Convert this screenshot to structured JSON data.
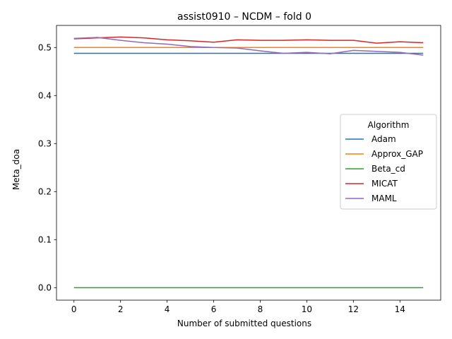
{
  "chart_data": {
    "type": "line",
    "title": "assist0910 – NCDM – fold 0",
    "xlabel": "Number of submitted questions",
    "ylabel": "Meta_doa",
    "xlim": [
      -0.75,
      15.75
    ],
    "ylim": [
      -0.026,
      0.546
    ],
    "xticks": [
      0,
      2,
      4,
      6,
      8,
      10,
      12,
      14
    ],
    "yticks": [
      0.0,
      0.1,
      0.2,
      0.3,
      0.4,
      0.5
    ],
    "grid": false,
    "legend": {
      "title": "Algorithm",
      "placement": "center-right"
    },
    "x": [
      0,
      1,
      2,
      3,
      4,
      5,
      6,
      7,
      8,
      9,
      10,
      11,
      12,
      13,
      14,
      15
    ],
    "series": [
      {
        "name": "Adam",
        "color": "#1f77b4",
        "values": [
          0.488,
          0.488,
          0.488,
          0.488,
          0.488,
          0.488,
          0.488,
          0.488,
          0.488,
          0.488,
          0.488,
          0.488,
          0.488,
          0.488,
          0.488,
          0.488
        ]
      },
      {
        "name": "Approx_GAP",
        "color": "#ff7f0e",
        "values": [
          0.5,
          0.5,
          0.5,
          0.5,
          0.5,
          0.5,
          0.5,
          0.5,
          0.5,
          0.5,
          0.5,
          0.5,
          0.5,
          0.5,
          0.5,
          0.5
        ]
      },
      {
        "name": "Beta_cd",
        "color": "#2ca02c",
        "values": [
          0.0,
          0.0,
          0.0,
          0.0,
          0.0,
          0.0,
          0.0,
          0.0,
          0.0,
          0.0,
          0.0,
          0.0,
          0.0,
          0.0,
          0.0,
          0.0
        ]
      },
      {
        "name": "MICAT",
        "color": "#d62728",
        "values": [
          0.518,
          0.52,
          0.522,
          0.52,
          0.516,
          0.514,
          0.511,
          0.516,
          0.515,
          0.515,
          0.516,
          0.515,
          0.515,
          0.509,
          0.512,
          0.51
        ]
      },
      {
        "name": "MAML",
        "color": "#9467bd",
        "values": [
          0.519,
          0.521,
          0.515,
          0.51,
          0.507,
          0.502,
          0.5,
          0.499,
          0.493,
          0.488,
          0.49,
          0.487,
          0.494,
          0.492,
          0.49,
          0.484
        ]
      }
    ]
  }
}
